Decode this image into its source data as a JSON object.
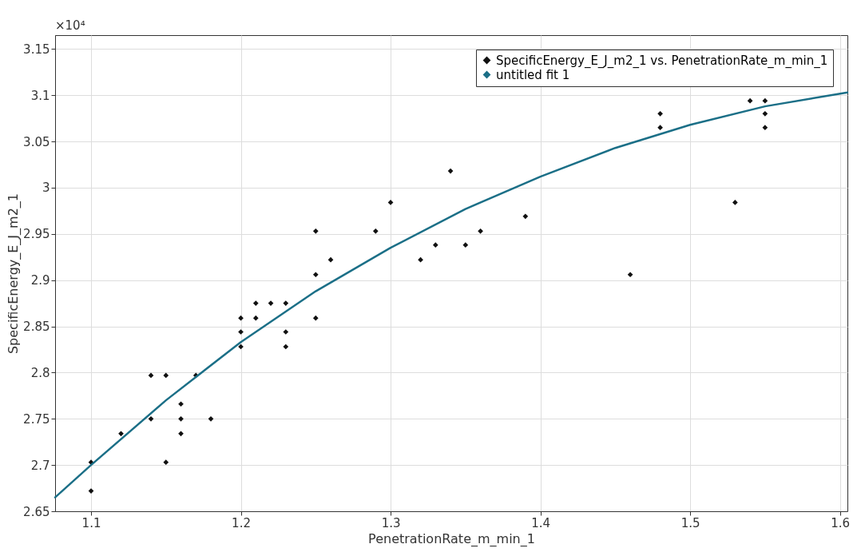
{
  "chart_data": {
    "type": "scatter",
    "xlabel": "PenetrationRate_m_min_1",
    "ylabel": "SpecificEnergy_E_J_m2_1",
    "annotations": [
      "×10⁴"
    ],
    "xlim": [
      1.076,
      1.605
    ],
    "xticks": [
      1.1,
      1.2,
      1.3,
      1.4,
      1.5,
      1.6
    ],
    "ylim": [
      2.65,
      3.165
    ],
    "yticks": [
      2.65,
      2.7,
      2.75,
      2.8,
      2.85,
      2.9,
      2.95,
      {
        "value": 3.0,
        "label": "3"
      },
      3.05,
      3.1,
      3.15
    ],
    "grid": true,
    "legend": "top right",
    "series": [
      {
        "name": "SpecificEnergy_E_J_m2_1 vs. PenetrationRate_m_min_1",
        "marker": "diamond",
        "color": "#111111",
        "x": [
          1.1,
          1.1,
          1.12,
          1.14,
          1.14,
          1.15,
          1.15,
          1.16,
          1.16,
          1.16,
          1.17,
          1.18,
          1.2,
          1.2,
          1.2,
          1.21,
          1.21,
          1.22,
          1.23,
          1.23,
          1.23,
          1.25,
          1.25,
          1.25,
          1.26,
          1.29,
          1.3,
          1.32,
          1.33,
          1.34,
          1.35,
          1.36,
          1.39,
          1.46,
          1.48,
          1.48,
          1.53,
          1.54,
          1.55,
          1.55,
          1.55
        ],
        "values": [
          2.703,
          2.672,
          2.734,
          2.797,
          2.75,
          2.797,
          2.703,
          2.766,
          2.75,
          2.734,
          2.797,
          2.75,
          2.859,
          2.844,
          2.828,
          2.875,
          2.859,
          2.875,
          2.875,
          2.844,
          2.828,
          2.953,
          2.906,
          2.859,
          2.922,
          2.953,
          2.984,
          2.922,
          2.938,
          3.018,
          2.938,
          2.953,
          2.969,
          2.906,
          3.08,
          3.065,
          2.984,
          3.094,
          3.094,
          3.08,
          3.065
        ]
      },
      {
        "name": "untitled fit 1",
        "type": "line",
        "marker": "none",
        "line_style": "solid",
        "color": "#1b6f87",
        "x": [
          1.076,
          1.1,
          1.15,
          1.2,
          1.25,
          1.3,
          1.35,
          1.4,
          1.45,
          1.5,
          1.55,
          1.605
        ],
        "values": [
          2.665,
          2.7,
          2.77,
          2.833,
          2.888,
          2.935,
          2.977,
          3.012,
          3.043,
          3.068,
          3.088,
          3.103
        ]
      }
    ]
  }
}
